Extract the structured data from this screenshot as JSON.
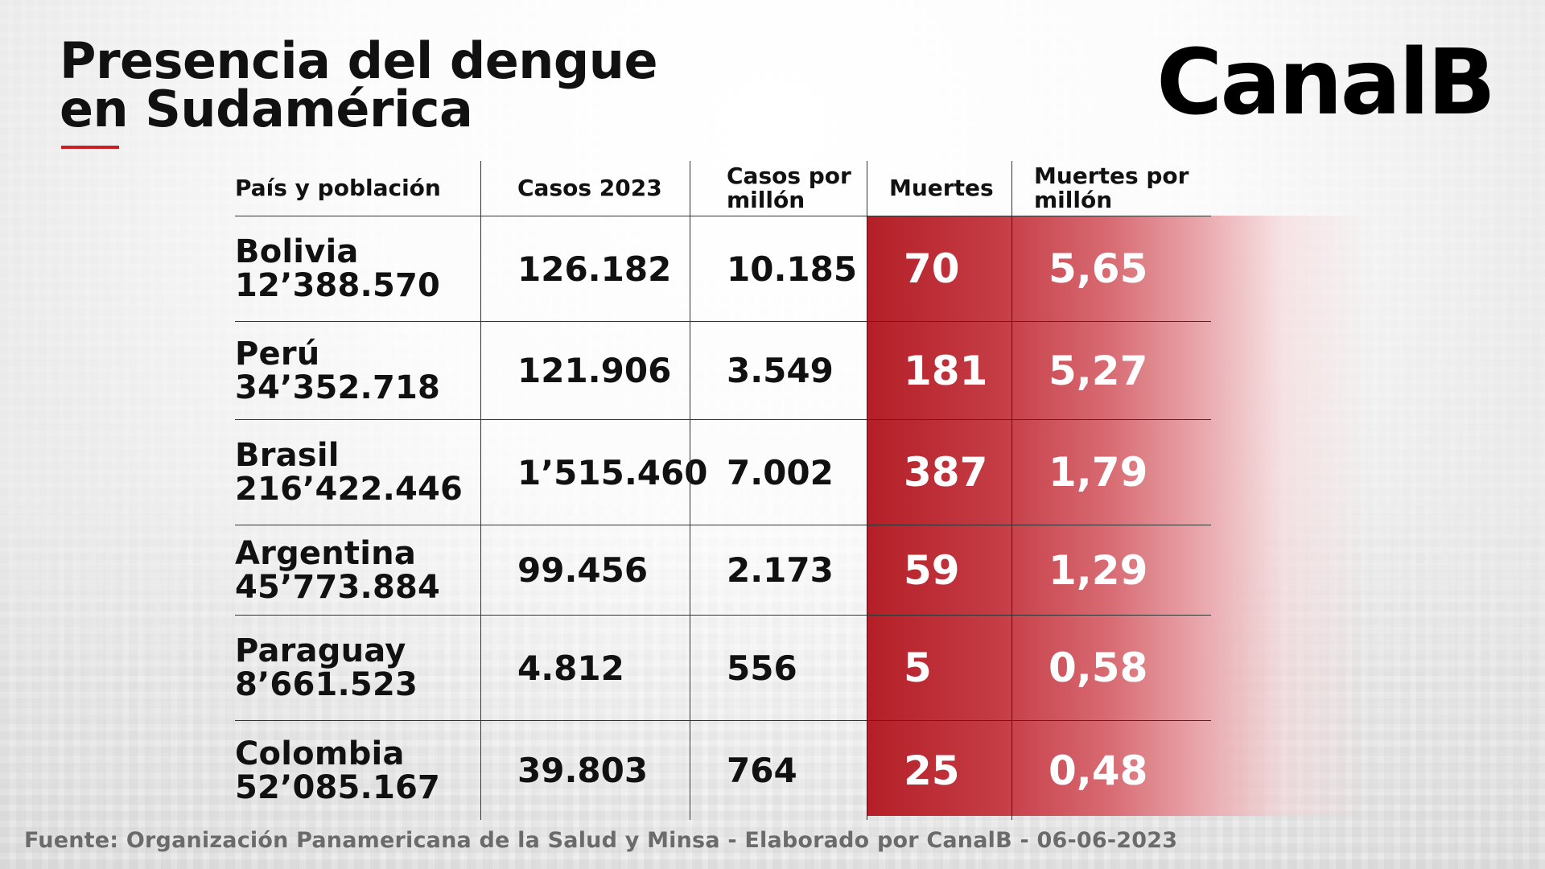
{
  "title_lines": [
    "Presencia del dengue",
    "en Sudamérica"
  ],
  "brand": "CanalB",
  "table": {
    "headers": [
      [
        "País y población"
      ],
      [
        "Casos 2023"
      ],
      [
        "Casos por",
        "millón"
      ],
      [
        "Muertes"
      ],
      [
        "Muertes por",
        "millón"
      ]
    ],
    "rows": [
      {
        "country": "Bolivia",
        "population": "12’388.570",
        "cases": "126.182",
        "cases_per_million": "10.185",
        "deaths": "70",
        "deaths_per_million": "5,65"
      },
      {
        "country": "Perú",
        "population": "34’352.718",
        "cases": "121.906",
        "cases_per_million": "3.549",
        "deaths": "181",
        "deaths_per_million": "5,27"
      },
      {
        "country": "Brasil",
        "population": "216’422.446",
        "cases": "1’515.460",
        "cases_per_million": "7.002",
        "deaths": "387",
        "deaths_per_million": "1,79"
      },
      {
        "country": "Argentina",
        "population": "45’773.884",
        "cases": "99.456",
        "cases_per_million": "2.173",
        "deaths": "59",
        "deaths_per_million": "1,29"
      },
      {
        "country": "Paraguay",
        "population": "8’661.523",
        "cases": "4.812",
        "cases_per_million": "556",
        "deaths": "5",
        "deaths_per_million": "0,58"
      },
      {
        "country": "Colombia",
        "population": "52’085.167",
        "cases": "39.803",
        "cases_per_million": "764",
        "deaths": "25",
        "deaths_per_million": "0,48"
      }
    ]
  },
  "footer": "Fuente: Organización Panamericana de la Salud y Minsa - Elaborado por CanalB - 06-06-2023",
  "colors": {
    "accent_red": "#cc1f24",
    "deaths_panel_red": "#b41f27"
  }
}
